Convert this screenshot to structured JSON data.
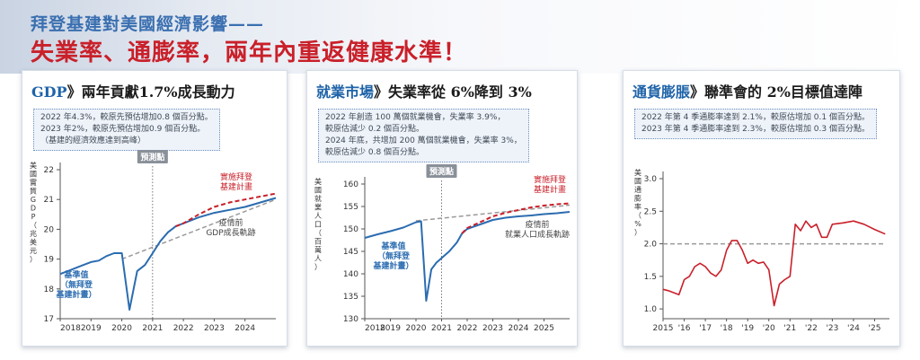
{
  "headline": {
    "line1": "拜登基建對美國經濟影響——",
    "line2": "失業率、通膨率，兩年內重返健康水準！"
  },
  "colors": {
    "title_blue": "#1e63a8",
    "headline_red": "#c9202a",
    "series_blue": "#2b6cb0",
    "series_red": "#c9202a",
    "baseline_gray": "#9a9a9a"
  },
  "panels": [
    {
      "title_keyword": "GDP",
      "title_rest": "》兩年貢獻1.7%成長動力",
      "notes": [
        "2022 年4.3%，較原先預估增加0.8 個百分點。",
        "2023 年2%，較原先預估增加0.9 個百分點。",
        "（基建的經濟效應達到高峰）"
      ]
    },
    {
      "title_keyword": "就業市場",
      "title_rest": "》失業率從 6%降到 3%",
      "notes": [
        "2022 年創造 100 萬個就業機會，失業率 3.9%，",
        "較原估減少 0.2 個百分點。",
        "2024 年底，共增加 200 萬個就業機會，失業率 3%，",
        "較原估減少 0.8 個百分點。"
      ]
    },
    {
      "title_keyword": "通貨膨脹",
      "title_rest": "》聯準會的 2%目標值達陣",
      "notes": [
        "2022 年第 4 季通膨率達到 2.1%，較原估增加 0.1 個百分點。",
        "2023 年第 4 季通膨率達到 2.3%，較原估增加 0.3 個百分點。"
      ]
    }
  ],
  "chart_data": [
    {
      "type": "line",
      "ylabel": "美國實質GDP（兆美元）",
      "x_ticks": [
        "2018",
        "2019",
        "2020",
        "2021",
        "2022",
        "2023",
        "2024"
      ],
      "y_ticks": [
        "17",
        "18",
        "19",
        "20",
        "21",
        "22"
      ],
      "ylim": [
        17,
        22
      ],
      "xlim": [
        2018,
        2025
      ],
      "forecast_line_x": 2021,
      "forecast_label": "預測點",
      "series": [
        {
          "name": "基準值（無拜登基建計畫）",
          "label_lines": [
            "基準值",
            "（無拜登",
            "基建計畫）"
          ],
          "style": "solid-blue",
          "points": [
            [
              2018.0,
              18.5
            ],
            [
              2018.25,
              18.6
            ],
            [
              2018.5,
              18.7
            ],
            [
              2018.75,
              18.8
            ],
            [
              2019.0,
              18.9
            ],
            [
              2019.25,
              18.95
            ],
            [
              2019.5,
              19.1
            ],
            [
              2019.75,
              19.2
            ],
            [
              2020.0,
              19.2
            ],
            [
              2020.25,
              17.3
            ],
            [
              2020.5,
              18.6
            ],
            [
              2020.75,
              18.8
            ],
            [
              2021.0,
              19.2
            ],
            [
              2021.25,
              19.6
            ],
            [
              2021.5,
              19.9
            ],
            [
              2021.75,
              20.1
            ],
            [
              2022.0,
              20.2
            ],
            [
              2022.5,
              20.4
            ],
            [
              2023.0,
              20.55
            ],
            [
              2023.5,
              20.65
            ],
            [
              2024.0,
              20.75
            ],
            [
              2024.5,
              20.9
            ],
            [
              2025.0,
              21.05
            ]
          ]
        },
        {
          "name": "實施拜登基建計畫",
          "label_lines": [
            "實施拜登",
            "基建計畫"
          ],
          "style": "dashed-red",
          "points": [
            [
              2021.75,
              20.1
            ],
            [
              2022.0,
              20.2
            ],
            [
              2022.5,
              20.5
            ],
            [
              2023.0,
              20.75
            ],
            [
              2023.5,
              20.9
            ],
            [
              2024.0,
              21.0
            ],
            [
              2024.5,
              21.1
            ],
            [
              2025.0,
              21.2
            ]
          ]
        },
        {
          "name": "疫情前GDP成長軌跡",
          "label_lines": [
            "疫情前",
            "GDP成長軌跡"
          ],
          "style": "dashed-gray",
          "points": [
            [
              2020.0,
              19.0
            ],
            [
              2025.0,
              21.0
            ]
          ]
        }
      ]
    },
    {
      "type": "line",
      "ylabel": "美國就業人口（百萬人）",
      "x_ticks": [
        "2018",
        "2019",
        "2020",
        "2021",
        "2022",
        "2023",
        "2024",
        "2025"
      ],
      "y_ticks": [
        "130",
        "135",
        "140",
        "145",
        "150",
        "155",
        "160"
      ],
      "ylim": [
        130,
        160
      ],
      "xlim": [
        2018,
        2026
      ],
      "forecast_line_x": 2021,
      "forecast_label": "預測點",
      "series": [
        {
          "name": "基準值（無拜登基建計畫）",
          "label_lines": [
            "基準值",
            "（無拜登",
            "基建計畫）"
          ],
          "style": "solid-blue",
          "points": [
            [
              2018.0,
              148.0
            ],
            [
              2018.5,
              148.8
            ],
            [
              2019.0,
              149.5
            ],
            [
              2019.5,
              150.3
            ],
            [
              2020.0,
              151.5
            ],
            [
              2020.2,
              151.7
            ],
            [
              2020.4,
              134.0
            ],
            [
              2020.6,
              141.0
            ],
            [
              2020.8,
              142.5
            ],
            [
              2021.0,
              143.5
            ],
            [
              2021.3,
              145.0
            ],
            [
              2021.6,
              147.0
            ],
            [
              2021.8,
              149.0
            ],
            [
              2022.0,
              150.0
            ],
            [
              2022.5,
              151.0
            ],
            [
              2023.0,
              152.0
            ],
            [
              2023.5,
              152.5
            ],
            [
              2024.0,
              152.8
            ],
            [
              2024.5,
              153.0
            ],
            [
              2025.0,
              153.3
            ],
            [
              2025.5,
              153.5
            ],
            [
              2026.0,
              153.8
            ]
          ]
        },
        {
          "name": "實施拜登基建計畫",
          "label_lines": [
            "實施拜登",
            "基建計畫"
          ],
          "style": "dashed-red",
          "points": [
            [
              2021.8,
              149.0
            ],
            [
              2022.0,
              150.2
            ],
            [
              2022.5,
              151.5
            ],
            [
              2023.0,
              152.8
            ],
            [
              2023.5,
              153.6
            ],
            [
              2024.0,
              154.2
            ],
            [
              2024.5,
              154.8
            ],
            [
              2025.0,
              155.2
            ],
            [
              2025.5,
              155.5
            ],
            [
              2026.0,
              155.7
            ]
          ]
        },
        {
          "name": "疫情前就業人口成長軌跡",
          "label_lines": [
            "疫情前",
            "就業人口成長軌跡"
          ],
          "style": "dashed-gray",
          "points": [
            [
              2020.0,
              151.8
            ],
            [
              2026.0,
              155.3
            ]
          ]
        }
      ]
    },
    {
      "type": "line",
      "ylabel": "美國通膨率（%）",
      "x_ticks": [
        "2015",
        "'16",
        "'17",
        "'18",
        "'19",
        "'20",
        "'21",
        "'22",
        "'23",
        "'24",
        "'25"
      ],
      "y_ticks": [
        "1.0",
        "1.5",
        "2.0",
        "2.5",
        "3.0"
      ],
      "ylim": [
        0.85,
        3.0
      ],
      "xlim": [
        2015,
        2025.7
      ],
      "series": [
        {
          "name": "通膨率",
          "label_lines": [],
          "style": "solid-red",
          "points": [
            [
              2015.0,
              1.3
            ],
            [
              2015.25,
              1.28
            ],
            [
              2015.5,
              1.25
            ],
            [
              2015.75,
              1.22
            ],
            [
              2016.0,
              1.45
            ],
            [
              2016.25,
              1.5
            ],
            [
              2016.5,
              1.65
            ],
            [
              2016.75,
              1.7
            ],
            [
              2017.0,
              1.65
            ],
            [
              2017.25,
              1.55
            ],
            [
              2017.5,
              1.5
            ],
            [
              2017.75,
              1.6
            ],
            [
              2018.0,
              1.9
            ],
            [
              2018.25,
              2.05
            ],
            [
              2018.5,
              2.05
            ],
            [
              2018.75,
              1.9
            ],
            [
              2019.0,
              1.7
            ],
            [
              2019.25,
              1.75
            ],
            [
              2019.5,
              1.7
            ],
            [
              2019.75,
              1.72
            ],
            [
              2020.0,
              1.6
            ],
            [
              2020.25,
              1.05
            ],
            [
              2020.5,
              1.38
            ],
            [
              2020.75,
              1.45
            ],
            [
              2021.0,
              1.5
            ],
            [
              2021.25,
              2.3
            ],
            [
              2021.5,
              2.2
            ],
            [
              2021.75,
              2.35
            ],
            [
              2022.0,
              2.25
            ],
            [
              2022.25,
              2.3
            ],
            [
              2022.5,
              2.1
            ],
            [
              2022.75,
              2.1
            ],
            [
              2023.0,
              2.3
            ],
            [
              2023.5,
              2.32
            ],
            [
              2024.0,
              2.35
            ],
            [
              2024.5,
              2.3
            ],
            [
              2025.0,
              2.22
            ],
            [
              2025.5,
              2.15
            ]
          ]
        },
        {
          "name": "2%目標值",
          "label_lines": [],
          "style": "dashed-gray",
          "points": [
            [
              2015.0,
              2.0
            ],
            [
              2025.5,
              2.0
            ]
          ]
        }
      ]
    }
  ]
}
